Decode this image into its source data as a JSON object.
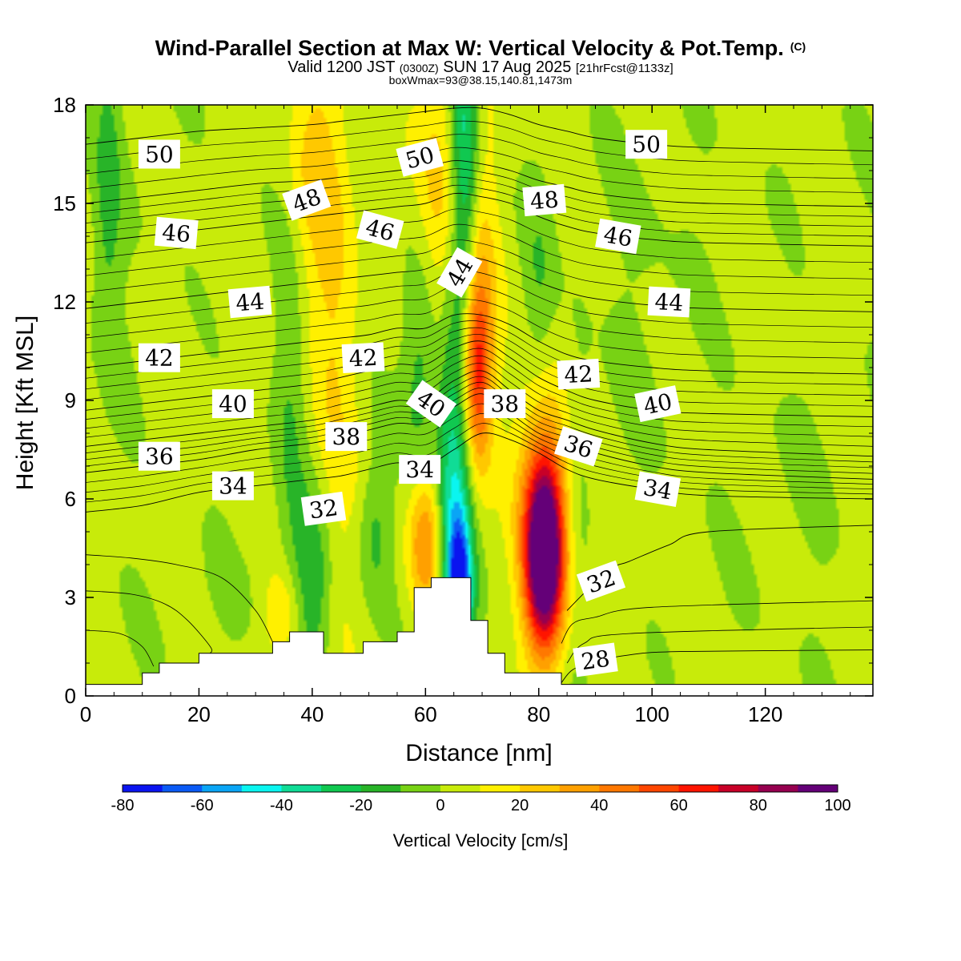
{
  "chart_data": {
    "type": "heatmap",
    "title": "Wind-Parallel Section at Max W: Vertical Velocity & Pot.Temp.",
    "title_mark": "(C)",
    "subtitle_parts": [
      "Valid 1200 JST",
      "(0300Z)",
      "SUN 17 Aug 2025",
      "[21hrFcst@1133z]"
    ],
    "subtitle2": "boxWmax=93@38.15,140.81,1473m",
    "xlabel": "Distance [nm]",
    "ylabel": "Height [Kft MSL]",
    "xlim": [
      0,
      139
    ],
    "ylim": [
      0,
      18
    ],
    "xticks": [
      0,
      20,
      40,
      60,
      80,
      100,
      120
    ],
    "yticks": [
      0,
      3,
      6,
      9,
      12,
      15,
      18
    ],
    "colorbar": {
      "label": "Vertical Velocity [cm/s]",
      "levels": [
        -80,
        -70,
        -60,
        -50,
        -40,
        -30,
        -20,
        -10,
        0,
        10,
        20,
        30,
        40,
        50,
        60,
        70,
        80,
        90,
        100
      ],
      "tick_labels": [
        "-80",
        "-60",
        "-40",
        "-20",
        "0",
        "20",
        "40",
        "60",
        "80",
        "100"
      ],
      "colors": [
        "#0a14f0",
        "#0a5af5",
        "#0aa5f5",
        "#0af5f0",
        "#10dc96",
        "#10c850",
        "#28b428",
        "#78d214",
        "#c8eb0a",
        "#fff000",
        "#ffc800",
        "#ffa000",
        "#ff7800",
        "#ff4600",
        "#ff1400",
        "#c80028",
        "#960050",
        "#640078"
      ]
    },
    "terrain": [
      [
        0,
        0.35
      ],
      [
        10,
        0.35
      ],
      [
        10,
        0.7
      ],
      [
        13,
        0.7
      ],
      [
        13,
        1.0
      ],
      [
        20,
        1.0
      ],
      [
        20,
        1.3
      ],
      [
        33,
        1.3
      ],
      [
        33,
        1.65
      ],
      [
        36,
        1.65
      ],
      [
        36,
        1.95
      ],
      [
        42,
        1.95
      ],
      [
        42,
        1.3
      ],
      [
        49,
        1.3
      ],
      [
        49,
        1.65
      ],
      [
        55,
        1.65
      ],
      [
        55,
        1.95
      ],
      [
        58,
        1.95
      ],
      [
        58,
        3.3
      ],
      [
        61,
        3.3
      ],
      [
        61,
        3.6
      ],
      [
        68,
        3.6
      ],
      [
        68,
        2.3
      ],
      [
        71,
        2.3
      ],
      [
        71,
        1.3
      ],
      [
        74,
        1.3
      ],
      [
        74,
        0.7
      ],
      [
        84,
        0.7
      ],
      [
        84,
        0.35
      ],
      [
        139,
        0.35
      ]
    ],
    "w_features": [
      {
        "x": 81,
        "y": 4.2,
        "sx": 2.3,
        "sy": 1.9,
        "w": 95
      },
      {
        "x": 81,
        "y": 5.6,
        "sx": 3.2,
        "sy": 2.8,
        "w": 45
      },
      {
        "x": 69,
        "y": 10.0,
        "sx": 1.8,
        "sy": 2.0,
        "w": 55
      },
      {
        "x": 69,
        "y": 12.5,
        "sx": 2.6,
        "sy": 4.5,
        "w": 22
      },
      {
        "x": 62,
        "y": 15.5,
        "sx": 2.8,
        "sy": 3.5,
        "w": 22
      },
      {
        "x": 60,
        "y": 4.8,
        "sx": 2.2,
        "sy": 1.6,
        "w": 40
      },
      {
        "x": 44,
        "y": 11.0,
        "sx": 3.2,
        "sy": 6.5,
        "w": 15
      },
      {
        "x": 40,
        "y": 16.0,
        "sx": 3.2,
        "sy": 2.8,
        "w": 15
      },
      {
        "x": 35,
        "y": 2.5,
        "sx": 2.5,
        "sy": 1.0,
        "w": 20
      },
      {
        "x": 66,
        "y": 3.2,
        "sx": 1.6,
        "sy": 1.5,
        "w": -75
      },
      {
        "x": 65,
        "y": 6.5,
        "sx": 2.2,
        "sy": 3.2,
        "w": -42
      },
      {
        "x": 67,
        "y": 16.5,
        "sx": 1.8,
        "sy": 4.5,
        "w": -45
      },
      {
        "x": 59,
        "y": 10.0,
        "sx": 2.2,
        "sy": 3.0,
        "w": -22
      },
      {
        "x": 40,
        "y": 3.5,
        "sx": 2.5,
        "sy": 2.0,
        "w": -25
      },
      {
        "x": 51,
        "y": 5.0,
        "sx": 2.0,
        "sy": 1.5,
        "w": -15
      },
      {
        "x": 36,
        "y": 9.0,
        "sx": 2.0,
        "sy": 4.0,
        "w": -12
      },
      {
        "x": 4,
        "y": 15.5,
        "sx": 1.6,
        "sy": 3.0,
        "w": -15
      },
      {
        "x": 87,
        "y": 6.0,
        "sx": 2.0,
        "sy": 4.0,
        "w": -10
      },
      {
        "x": 80,
        "y": 12.0,
        "sx": 2.0,
        "sy": 2.5,
        "w": -12
      },
      {
        "x": 100,
        "y": 12.0,
        "sx": 6.0,
        "sy": 4.0,
        "w": -4
      },
      {
        "x": 125,
        "y": 9.0,
        "sx": 8.0,
        "sy": 6.0,
        "w": -3
      },
      {
        "x": 8,
        "y": 12.0,
        "sx": 6.0,
        "sy": 5.0,
        "w": -3
      },
      {
        "x": 25,
        "y": 3.0,
        "sx": 8.0,
        "sy": 1.2,
        "w": -3
      },
      {
        "x": 95,
        "y": 4.0,
        "sx": 6.0,
        "sy": 1.6,
        "w": 5
      },
      {
        "x": 125,
        "y": 12.0,
        "sx": 8.0,
        "sy": 2.0,
        "w": 4
      },
      {
        "x": 15,
        "y": 9.0,
        "sx": 6.0,
        "sy": 3.0,
        "w": 3
      }
    ],
    "theta_contours": [
      {
        "label": "28",
        "label_x": 90,
        "label_y": 1.1,
        "label_angle": -8,
        "pts": [
          [
            84,
            0.4
          ],
          [
            86,
            0.8
          ],
          [
            90,
            1.05
          ],
          [
            96,
            1.25
          ],
          [
            105,
            1.35
          ],
          [
            139,
            1.4
          ]
        ]
      },
      {
        "label": "32",
        "label_x": 91,
        "label_y": 3.5,
        "label_angle": -20,
        "pts": [
          [
            85,
            2.6
          ],
          [
            89,
            3.3
          ],
          [
            93,
            3.9
          ],
          [
            96,
            4.1
          ],
          [
            103,
            4.6
          ],
          [
            110,
            5.0
          ],
          [
            139,
            5.2
          ]
        ]
      },
      {
        "label": "34",
        "label_x": 101,
        "label_y": 6.3,
        "label_angle": 10,
        "pts": [
          [
            0,
            5.6
          ],
          [
            10,
            5.8
          ],
          [
            20,
            6.2
          ],
          [
            30,
            6.4
          ],
          [
            40,
            6.6
          ],
          [
            45,
            6.7
          ],
          [
            50,
            6.9
          ],
          [
            55,
            7.1
          ],
          [
            60,
            7.0
          ],
          [
            65,
            7.5
          ],
          [
            70,
            8.0
          ],
          [
            75,
            7.8
          ],
          [
            80,
            7.4
          ],
          [
            85,
            6.9
          ],
          [
            90,
            6.6
          ],
          [
            100,
            6.3
          ],
          [
            110,
            6.1
          ],
          [
            139,
            6.0
          ]
        ]
      },
      {
        "label": "36",
        "label_x": 87,
        "label_y": 7.6,
        "label_angle": 18,
        "pts": [
          [
            0,
            6.8
          ],
          [
            10,
            7.0
          ],
          [
            20,
            7.2
          ],
          [
            30,
            7.5
          ],
          [
            40,
            7.7
          ],
          [
            45,
            7.9
          ],
          [
            50,
            8.1
          ],
          [
            55,
            8.3
          ],
          [
            60,
            8.3
          ],
          [
            65,
            8.8
          ],
          [
            70,
            9.2
          ],
          [
            75,
            8.6
          ],
          [
            80,
            8.0
          ],
          [
            85,
            7.7
          ],
          [
            90,
            7.4
          ],
          [
            100,
            7.0
          ],
          [
            110,
            6.8
          ],
          [
            139,
            6.6
          ]
        ]
      },
      {
        "label": "38",
        "label_x": 46,
        "label_y": 7.9,
        "label_angle": 0,
        "pts": [
          [
            0,
            7.6
          ],
          [
            10,
            7.8
          ],
          [
            20,
            8.0
          ],
          [
            30,
            8.2
          ],
          [
            40,
            8.4
          ],
          [
            45,
            8.6
          ],
          [
            50,
            8.8
          ],
          [
            55,
            9.0
          ],
          [
            60,
            9.0
          ],
          [
            65,
            9.6
          ],
          [
            70,
            9.9
          ],
          [
            75,
            9.3
          ],
          [
            80,
            8.7
          ],
          [
            85,
            8.4
          ],
          [
            90,
            8.1
          ],
          [
            100,
            7.7
          ],
          [
            110,
            7.5
          ],
          [
            139,
            7.3
          ]
        ]
      },
      {
        "label": "40",
        "label_x": 101,
        "label_y": 8.9,
        "label_angle": -12,
        "pts": [
          [
            0,
            8.7
          ],
          [
            10,
            8.9
          ],
          [
            20,
            9.1
          ],
          [
            30,
            9.3
          ],
          [
            40,
            9.5
          ],
          [
            45,
            9.7
          ],
          [
            50,
            9.9
          ],
          [
            55,
            10.1
          ],
          [
            60,
            10.1
          ],
          [
            65,
            10.6
          ],
          [
            70,
            10.8
          ],
          [
            75,
            10.3
          ],
          [
            80,
            9.7
          ],
          [
            85,
            9.3
          ],
          [
            90,
            9.0
          ],
          [
            100,
            8.7
          ],
          [
            110,
            8.6
          ],
          [
            139,
            8.5
          ]
        ]
      },
      {
        "label": "42",
        "label_x": 49,
        "label_y": 10.3,
        "label_angle": -3,
        "pts": [
          [
            0,
            10.0
          ],
          [
            10,
            10.2
          ],
          [
            20,
            10.4
          ],
          [
            30,
            10.6
          ],
          [
            40,
            10.8
          ],
          [
            45,
            10.9
          ],
          [
            50,
            11.0
          ],
          [
            55,
            11.2
          ],
          [
            60,
            11.2
          ],
          [
            65,
            11.6
          ],
          [
            70,
            11.6
          ],
          [
            75,
            11.3
          ],
          [
            80,
            10.8
          ],
          [
            85,
            10.4
          ],
          [
            90,
            10.2
          ],
          [
            100,
            10.0
          ],
          [
            110,
            9.9
          ],
          [
            139,
            9.8
          ]
        ]
      },
      {
        "label": "44",
        "label_x": 103,
        "label_y": 12.0,
        "label_angle": 3,
        "pts": [
          [
            0,
            11.8
          ],
          [
            10,
            12.0
          ],
          [
            20,
            12.2
          ],
          [
            30,
            12.4
          ],
          [
            40,
            12.6
          ],
          [
            45,
            12.7
          ],
          [
            50,
            12.8
          ],
          [
            55,
            12.9
          ],
          [
            60,
            13.0
          ],
          [
            65,
            13.4
          ],
          [
            70,
            13.3
          ],
          [
            75,
            13.0
          ],
          [
            80,
            12.6
          ],
          [
            85,
            12.3
          ],
          [
            90,
            12.1
          ],
          [
            100,
            11.9
          ],
          [
            110,
            11.8
          ],
          [
            139,
            11.7
          ]
        ]
      },
      {
        "label": "46",
        "label_x": 52,
        "label_y": 14.2,
        "label_angle": 15,
        "pts": [
          [
            0,
            13.8
          ],
          [
            10,
            14.0
          ],
          [
            20,
            14.2
          ],
          [
            30,
            14.4
          ],
          [
            40,
            14.6
          ],
          [
            45,
            14.7
          ],
          [
            50,
            14.8
          ],
          [
            55,
            14.9
          ],
          [
            60,
            15.0
          ],
          [
            65,
            15.3
          ],
          [
            70,
            15.2
          ],
          [
            75,
            15.0
          ],
          [
            80,
            14.6
          ],
          [
            85,
            14.3
          ],
          [
            90,
            14.1
          ],
          [
            100,
            13.9
          ],
          [
            110,
            13.8
          ],
          [
            139,
            13.7
          ]
        ]
      },
      {
        "label": "48",
        "label_x": 81,
        "label_y": 15.1,
        "label_angle": -5,
        "pts": [
          [
            0,
            15.0
          ],
          [
            10,
            15.2
          ],
          [
            20,
            15.4
          ],
          [
            30,
            15.6
          ],
          [
            40,
            15.7
          ],
          [
            45,
            15.8
          ],
          [
            50,
            15.9
          ],
          [
            55,
            16.0
          ],
          [
            60,
            16.1
          ],
          [
            65,
            16.3
          ],
          [
            70,
            16.2
          ],
          [
            75,
            16.0
          ],
          [
            80,
            15.7
          ],
          [
            85,
            15.5
          ],
          [
            90,
            15.3
          ],
          [
            100,
            15.1
          ],
          [
            110,
            15.0
          ],
          [
            139,
            14.9
          ]
        ]
      },
      {
        "label": "50",
        "label_x": 99,
        "label_y": 16.8,
        "label_angle": 0,
        "pts": [
          [
            0,
            16.8
          ],
          [
            10,
            17.0
          ],
          [
            20,
            17.2
          ],
          [
            30,
            17.3
          ],
          [
            40,
            17.4
          ],
          [
            45,
            17.5
          ],
          [
            50,
            17.6
          ],
          [
            55,
            17.7
          ],
          [
            60,
            17.8
          ],
          [
            65,
            17.9
          ],
          [
            70,
            17.9
          ],
          [
            75,
            17.7
          ],
          [
            80,
            17.4
          ],
          [
            85,
            17.2
          ],
          [
            90,
            17.0
          ],
          [
            100,
            16.8
          ],
          [
            110,
            16.7
          ],
          [
            139,
            16.6
          ]
        ]
      }
    ],
    "extra_labels": [
      {
        "label": "50",
        "x": 13,
        "y": 16.5,
        "angle": 0
      },
      {
        "label": "50",
        "x": 59,
        "y": 16.4,
        "angle": -15
      },
      {
        "label": "48",
        "x": 39,
        "y": 15.1,
        "angle": -20
      },
      {
        "label": "46",
        "x": 16,
        "y": 14.1,
        "angle": 5
      },
      {
        "label": "46",
        "x": 94,
        "y": 14.0,
        "angle": 10
      },
      {
        "label": "44",
        "x": 29,
        "y": 12.0,
        "angle": -5
      },
      {
        "label": "44",
        "x": 66,
        "y": 12.9,
        "angle": -60
      },
      {
        "label": "42",
        "x": 13,
        "y": 10.3,
        "angle": 0
      },
      {
        "label": "42",
        "x": 87,
        "y": 9.8,
        "angle": -3
      },
      {
        "label": "40",
        "x": 26,
        "y": 8.9,
        "angle": 0
      },
      {
        "label": "40",
        "x": 61,
        "y": 8.9,
        "angle": 35
      },
      {
        "label": "38",
        "x": 74,
        "y": 8.9,
        "angle": 0
      },
      {
        "label": "36",
        "x": 13,
        "y": 7.3,
        "angle": 0
      },
      {
        "label": "34",
        "x": 26,
        "y": 6.4,
        "angle": 0
      },
      {
        "label": "34",
        "x": 59,
        "y": 6.9,
        "angle": 0
      },
      {
        "label": "32",
        "x": 42,
        "y": 5.7,
        "angle": -8
      }
    ]
  }
}
